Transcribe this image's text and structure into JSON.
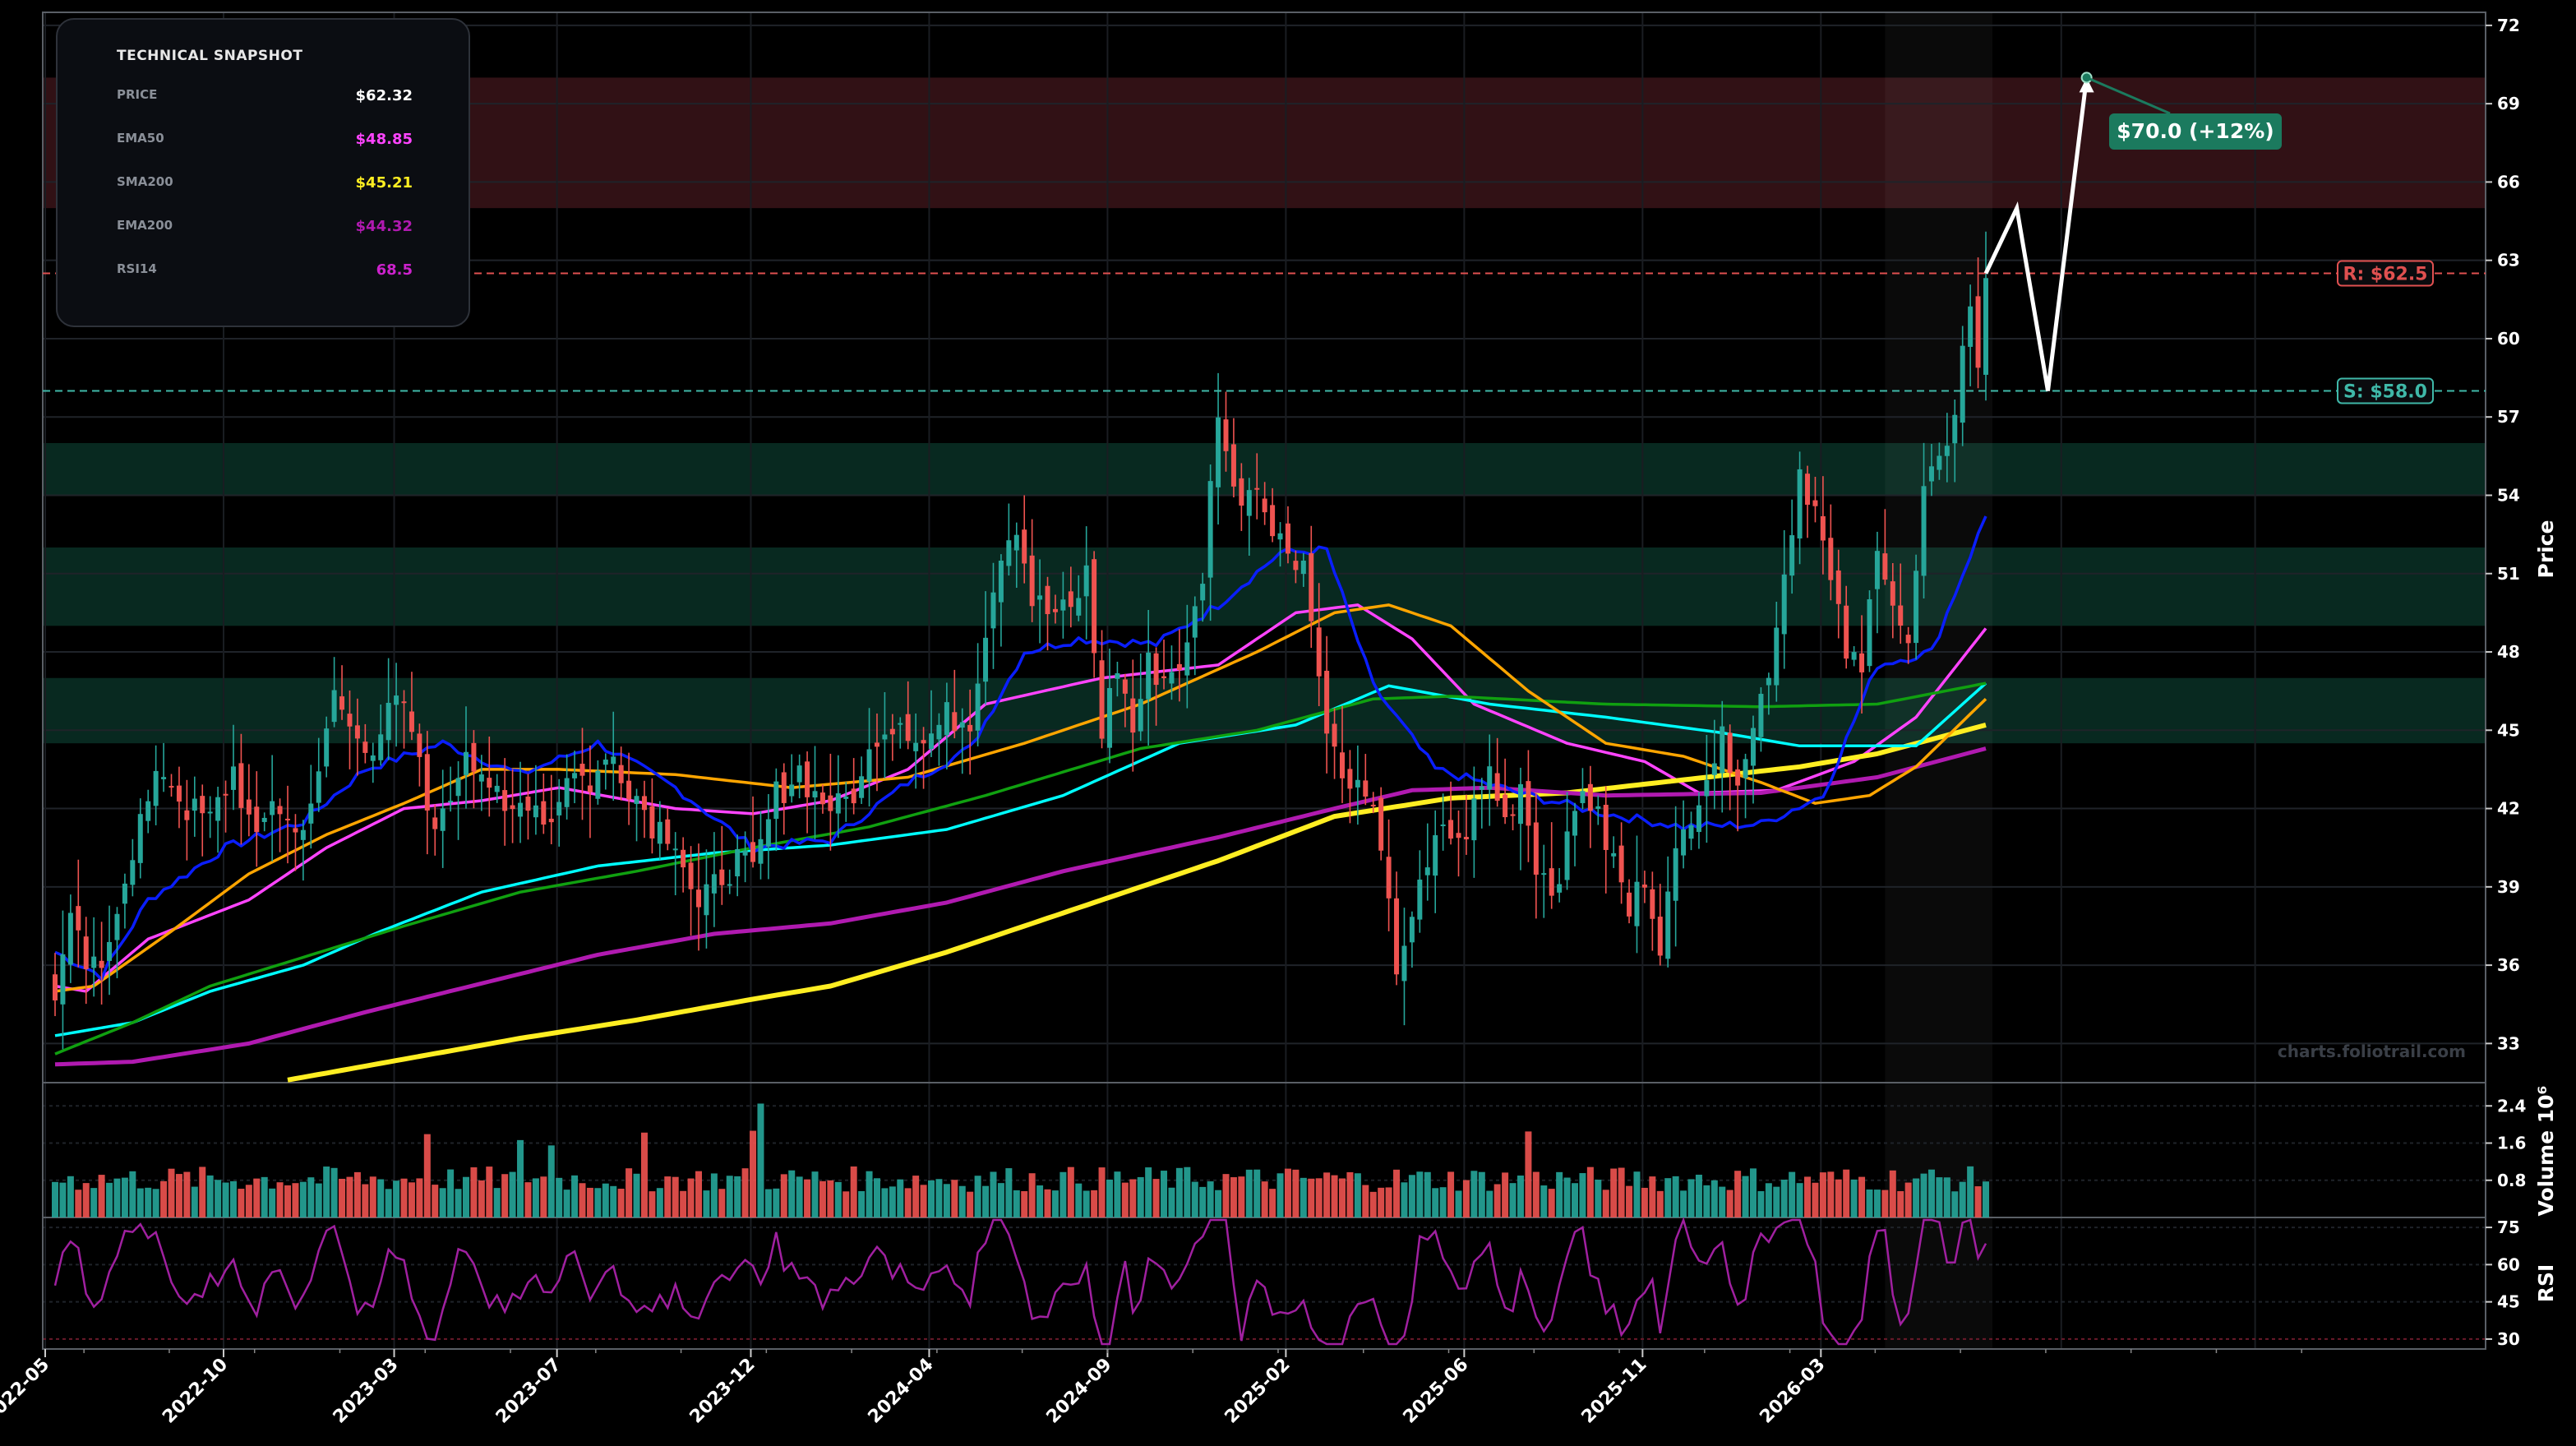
{
  "snapshot": {
    "title": "TECHNICAL SNAPSHOT",
    "rows": [
      {
        "label": "PRICE",
        "value": "$62.32",
        "color": "#ffffff"
      },
      {
        "label": "EMA50",
        "value": "$48.85",
        "color": "#ff44ff"
      },
      {
        "label": "SMA200",
        "value": "$45.21",
        "color": "#ffee22"
      },
      {
        "label": "EMA200",
        "value": "$44.32",
        "color": "#b01ab0"
      },
      {
        "label": "RSI14",
        "value": "68.5",
        "color": "#cc22cc"
      }
    ]
  },
  "watermark": "charts.foliotrail.com",
  "chart_data": [
    {
      "type": "candlestick",
      "ylabel": "Price",
      "ylim": [
        31.5,
        72.5
      ],
      "yticks": [
        33,
        36,
        39,
        42,
        45,
        48,
        51,
        54,
        57,
        60,
        63,
        66,
        69,
        72
      ],
      "xticks": [
        "2022-05",
        "2022-10",
        "2023-03",
        "2023-07",
        "2023-12",
        "2024-04",
        "2024-09",
        "2025-02",
        "2025-06",
        "2025-11",
        "2026-03"
      ],
      "levels": [
        {
          "label": "R: $62.5",
          "value": 62.5,
          "color": "#e05050"
        },
        {
          "label": "S: $58.0",
          "value": 58.0,
          "color": "#3fb8a8"
        }
      ],
      "zones": [
        {
          "from": 65.0,
          "to": 70.0,
          "color": "#5a1f26"
        },
        {
          "from": 54.0,
          "to": 56.0,
          "color": "#0f4a3a"
        },
        {
          "from": 49.0,
          "to": 52.0,
          "color": "#0f4a3a"
        },
        {
          "from": 44.5,
          "to": 47.0,
          "color": "#0f4a3a"
        }
      ],
      "close_anchors": [
        [
          0,
          35.0
        ],
        [
          2,
          37.5
        ],
        [
          4,
          36.0
        ],
        [
          6,
          35.5
        ],
        [
          8,
          38.5
        ],
        [
          11,
          41.5
        ],
        [
          14,
          43.5
        ],
        [
          17,
          42.0
        ],
        [
          20,
          41.5
        ],
        [
          23,
          43.5
        ],
        [
          26,
          40.5
        ],
        [
          28,
          42.5
        ],
        [
          31,
          41.0
        ],
        [
          34,
          43.0
        ],
        [
          36,
          46.5
        ],
        [
          38,
          45.0
        ],
        [
          41,
          44.5
        ],
        [
          44,
          46.0
        ],
        [
          46,
          45.0
        ],
        [
          48,
          42.0
        ],
        [
          50,
          41.5
        ],
        [
          53,
          44.5
        ],
        [
          56,
          43.0
        ],
        [
          58,
          41.5
        ],
        [
          61,
          42.5
        ],
        [
          64,
          41.5
        ],
        [
          66,
          43.5
        ],
        [
          69,
          43.0
        ],
        [
          72,
          44.0
        ],
        [
          74,
          43.0
        ],
        [
          77,
          41.5
        ],
        [
          80,
          41.0
        ],
        [
          83,
          38.0
        ],
        [
          86,
          39.5
        ],
        [
          88,
          40.0
        ],
        [
          90,
          39.5
        ],
        [
          93,
          42.5
        ],
        [
          96,
          43.5
        ],
        [
          98,
          42.5
        ],
        [
          101,
          42.0
        ],
        [
          104,
          43.0
        ],
        [
          106,
          45.0
        ],
        [
          109,
          45.5
        ],
        [
          112,
          44.5
        ],
        [
          115,
          45.5
        ],
        [
          118,
          45.5
        ],
        [
          120,
          49.0
        ],
        [
          122,
          52.0
        ],
        [
          124,
          53.0
        ],
        [
          126,
          50.0
        ],
        [
          128,
          49.5
        ],
        [
          131,
          49.5
        ],
        [
          133,
          51.0
        ],
        [
          135,
          45.0
        ],
        [
          137,
          47.5
        ],
        [
          139,
          45.0
        ],
        [
          141,
          47.5
        ],
        [
          143,
          47.0
        ],
        [
          146,
          48.0
        ],
        [
          148,
          51.0
        ],
        [
          150,
          57.5
        ],
        [
          152,
          54.0
        ],
        [
          155,
          54.5
        ],
        [
          156,
          54.0
        ],
        [
          157,
          52.5
        ],
        [
          159,
          52.0
        ],
        [
          161,
          51.5
        ],
        [
          163,
          47.0
        ],
        [
          165,
          44.0
        ],
        [
          167,
          42.5
        ],
        [
          169,
          43.0
        ],
        [
          171,
          40.0
        ],
        [
          173,
          36.0
        ],
        [
          175,
          38.0
        ],
        [
          177,
          39.5
        ],
        [
          179,
          41.5
        ],
        [
          181,
          40.5
        ],
        [
          183,
          42.0
        ],
        [
          185,
          43.5
        ],
        [
          187,
          41.5
        ],
        [
          189,
          43.0
        ],
        [
          191,
          40.0
        ],
        [
          193,
          39.0
        ],
        [
          195,
          40.5
        ],
        [
          197,
          43.0
        ],
        [
          199,
          41.5
        ],
        [
          201,
          40.0
        ],
        [
          203,
          38.0
        ],
        [
          205,
          39.5
        ],
        [
          207,
          37.0
        ],
        [
          209,
          40.0
        ],
        [
          211,
          42.0
        ],
        [
          213,
          43.5
        ],
        [
          215,
          44.5
        ],
        [
          217,
          43.5
        ],
        [
          219,
          45.0
        ],
        [
          221,
          47.5
        ],
        [
          223,
          51.0
        ],
        [
          225,
          55.0
        ],
        [
          227,
          53.5
        ],
        [
          229,
          50.5
        ],
        [
          231,
          48.0
        ],
        [
          233,
          47.0
        ],
        [
          235,
          52.5
        ],
        [
          237,
          50.0
        ],
        [
          239,
          48.0
        ],
        [
          241,
          54.0
        ],
        [
          243,
          55.0
        ],
        [
          245,
          57.5
        ],
        [
          247,
          61.5
        ],
        [
          248,
          58.5
        ],
        [
          249,
          62.32
        ]
      ],
      "volume": {
        "ylabel": "Volume  10^6",
        "yticks": [
          0.8,
          1.6,
          2.4
        ],
        "ylim": [
          0,
          2.9
        ]
      },
      "rsi": {
        "ylabel": "RSI",
        "yticks": [
          30,
          45,
          60,
          75
        ],
        "ylim": [
          26,
          79
        ],
        "last": 68.5
      },
      "series": [
        {
          "name": "EMA50",
          "color": "#ff44ff",
          "anchors": [
            [
              0,
              35.2
            ],
            [
              4,
              35.0
            ],
            [
              12,
              37.0
            ],
            [
              25,
              38.5
            ],
            [
              35,
              40.5
            ],
            [
              45,
              42.0
            ],
            [
              55,
              42.3
            ],
            [
              65,
              42.8
            ],
            [
              80,
              42.0
            ],
            [
              90,
              41.8
            ],
            [
              100,
              42.3
            ],
            [
              110,
              43.5
            ],
            [
              120,
              46.0
            ],
            [
              135,
              47.0
            ],
            [
              150,
              47.5
            ],
            [
              160,
              49.5
            ],
            [
              168,
              49.8
            ],
            [
              175,
              48.5
            ],
            [
              183,
              46.0
            ],
            [
              195,
              44.5
            ],
            [
              205,
              43.8
            ],
            [
              212,
              42.6
            ],
            [
              222,
              42.7
            ],
            [
              232,
              43.8
            ],
            [
              240,
              45.5
            ],
            [
              249,
              48.9
            ]
          ]
        },
        {
          "name": "SMA200",
          "color": "#ffee22",
          "anchors": [
            [
              30,
              31.6
            ],
            [
              45,
              32.4
            ],
            [
              60,
              33.2
            ],
            [
              75,
              33.9
            ],
            [
              90,
              34.7
            ],
            [
              100,
              35.2
            ],
            [
              115,
              36.5
            ],
            [
              125,
              37.5
            ],
            [
              135,
              38.5
            ],
            [
              150,
              40.0
            ],
            [
              165,
              41.7
            ],
            [
              180,
              42.4
            ],
            [
              195,
              42.6
            ],
            [
              210,
              43.1
            ],
            [
              225,
              43.6
            ],
            [
              235,
              44.1
            ],
            [
              249,
              45.2
            ]
          ]
        },
        {
          "name": "EMA200",
          "color": "#b01ab0",
          "anchors": [
            [
              0,
              32.2
            ],
            [
              10,
              32.3
            ],
            [
              25,
              33.0
            ],
            [
              40,
              34.2
            ],
            [
              55,
              35.3
            ],
            [
              70,
              36.4
            ],
            [
              85,
              37.2
            ],
            [
              100,
              37.6
            ],
            [
              115,
              38.4
            ],
            [
              130,
              39.6
            ],
            [
              150,
              40.9
            ],
            [
              165,
              42.0
            ],
            [
              175,
              42.7
            ],
            [
              185,
              42.8
            ],
            [
              200,
              42.5
            ],
            [
              220,
              42.6
            ],
            [
              235,
              43.2
            ],
            [
              249,
              44.3
            ]
          ]
        },
        {
          "name": "",
          "color": "#00ffff",
          "anchors": [
            [
              0,
              33.3
            ],
            [
              10,
              33.8
            ],
            [
              20,
              35.0
            ],
            [
              32,
              36.0
            ],
            [
              42,
              37.3
            ],
            [
              55,
              38.8
            ],
            [
              70,
              39.8
            ],
            [
              85,
              40.3
            ],
            [
              100,
              40.6
            ],
            [
              115,
              41.2
            ],
            [
              130,
              42.5
            ],
            [
              145,
              44.5
            ],
            [
              160,
              45.2
            ],
            [
              172,
              46.7
            ],
            [
              185,
              46.0
            ],
            [
              200,
              45.5
            ],
            [
              215,
              44.9
            ],
            [
              225,
              44.4
            ],
            [
              240,
              44.4
            ],
            [
              249,
              46.8
            ]
          ]
        },
        {
          "name": "",
          "color": "#10a010",
          "anchors": [
            [
              0,
              32.6
            ],
            [
              10,
              33.8
            ],
            [
              20,
              35.2
            ],
            [
              32,
              36.3
            ],
            [
              45,
              37.5
            ],
            [
              60,
              38.8
            ],
            [
              75,
              39.6
            ],
            [
              90,
              40.5
            ],
            [
              105,
              41.3
            ],
            [
              120,
              42.5
            ],
            [
              140,
              44.3
            ],
            [
              155,
              45.0
            ],
            [
              170,
              46.2
            ],
            [
              180,
              46.3
            ],
            [
              200,
              46.0
            ],
            [
              220,
              45.9
            ],
            [
              235,
              46.0
            ],
            [
              249,
              46.8
            ]
          ]
        },
        {
          "name": "",
          "color": "#ffa500",
          "anchors": [
            [
              0,
              35.0
            ],
            [
              5,
              35.2
            ],
            [
              15,
              37.3
            ],
            [
              25,
              39.5
            ],
            [
              35,
              41.0
            ],
            [
              45,
              42.2
            ],
            [
              55,
              43.5
            ],
            [
              65,
              43.5
            ],
            [
              80,
              43.3
            ],
            [
              95,
              42.8
            ],
            [
              110,
              43.2
            ],
            [
              125,
              44.5
            ],
            [
              140,
              46.0
            ],
            [
              155,
              48.0
            ],
            [
              165,
              49.5
            ],
            [
              172,
              49.8
            ],
            [
              180,
              49.0
            ],
            [
              190,
              46.5
            ],
            [
              200,
              44.5
            ],
            [
              210,
              44.0
            ],
            [
              220,
              43.0
            ],
            [
              227,
              42.2
            ],
            [
              234,
              42.5
            ],
            [
              240,
              43.6
            ],
            [
              249,
              46.2
            ]
          ]
        },
        {
          "name": "",
          "color": "#0a1eff",
          "anchors": [
            [
              0,
              36.5
            ],
            [
              6,
              35.6
            ],
            [
              12,
              38.5
            ],
            [
              22,
              40.5
            ],
            [
              32,
              41.5
            ],
            [
              40,
              43.5
            ],
            [
              50,
              44.5
            ],
            [
              60,
              43.3
            ],
            [
              70,
              44.5
            ],
            [
              80,
              42.8
            ],
            [
              90,
              40.5
            ],
            [
              100,
              40.8
            ],
            [
              110,
              43.0
            ],
            [
              118,
              44.3
            ],
            [
              125,
              48.0
            ],
            [
              132,
              48.5
            ],
            [
              142,
              48.3
            ],
            [
              150,
              49.8
            ],
            [
              158,
              51.8
            ],
            [
              164,
              51.9
            ],
            [
              170,
              46.7
            ],
            [
              178,
              43.5
            ],
            [
              190,
              42.5
            ],
            [
              200,
              41.8
            ],
            [
              210,
              41.3
            ],
            [
              220,
              41.4
            ],
            [
              228,
              42.5
            ],
            [
              235,
              47.5
            ],
            [
              242,
              48.0
            ],
            [
              249,
              53.2
            ]
          ]
        }
      ],
      "projection": [
        [
          249,
          62.5
        ],
        [
          253,
          65.0
        ],
        [
          257,
          58.0
        ],
        [
          262,
          70.0
        ]
      ],
      "target_label": "$70.0 (+12%)",
      "target_value": 70.0
    }
  ]
}
